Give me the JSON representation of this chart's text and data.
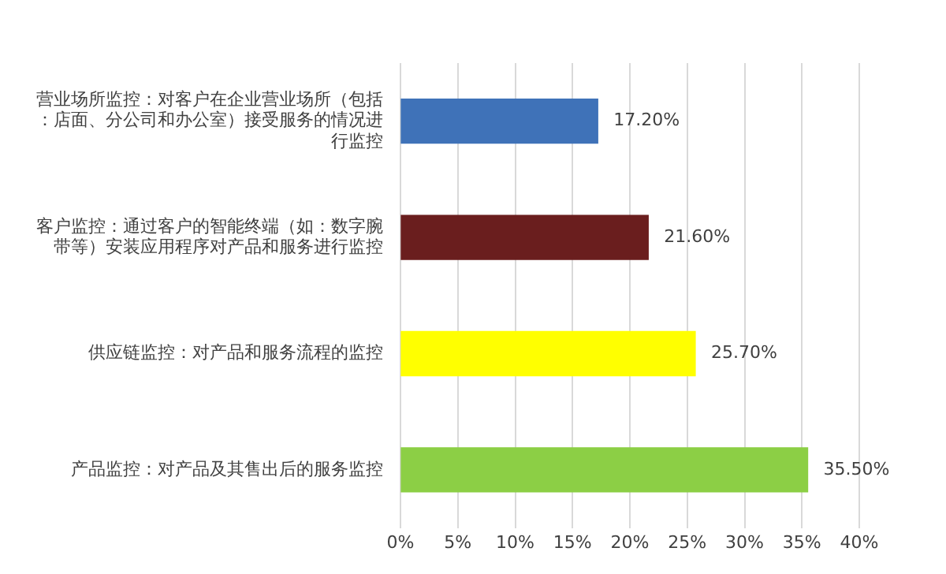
{
  "chart_data": {
    "type": "bar",
    "orientation": "horizontal",
    "categories": [
      "营业场所监控：对客户在企业营业场所（包括：店面、分公司和办公室）接受服务的情况进行监控",
      "客户监控：通过客户的智能终端（如：数字腕带等）安装应用程序对产品和服务进行监控",
      "供应链监控：对产品和服务流程的监控",
      "产品监控：对产品及其售出后的服务监控"
    ],
    "values": [
      17.2,
      21.6,
      25.7,
      35.5
    ],
    "colors": [
      "#3f72b8",
      "#6a1e1e",
      "#ffff00",
      "#8ccf45"
    ],
    "value_labels": [
      "17.20%",
      "21.60%",
      "25.70%",
      "35.50%"
    ],
    "xlim": [
      0,
      40
    ],
    "xticks": [
      {
        "value": 0,
        "label": "0%"
      },
      {
        "value": 5,
        "label": "5%"
      },
      {
        "value": 10,
        "label": "10%"
      },
      {
        "value": 15,
        "label": "15%"
      },
      {
        "value": 20,
        "label": "20%"
      },
      {
        "value": 25,
        "label": "25%"
      },
      {
        "value": 30,
        "label": "30%"
      },
      {
        "value": 35,
        "label": "35%"
      },
      {
        "value": 40,
        "label": "40%"
      }
    ],
    "grid": "x",
    "legend": false
  }
}
